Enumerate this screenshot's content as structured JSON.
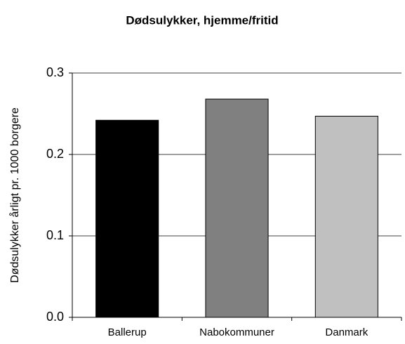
{
  "chart_data": {
    "type": "bar",
    "title": "Dødsulykker, hjemme/fritid",
    "y_label": "Dødsulykker årligt pr. 1000 borgere",
    "categories": [
      "Ballerup",
      "Nabokommuner",
      "Danmark"
    ],
    "values": [
      0.242,
      0.268,
      0.247
    ],
    "colors": [
      "#000000",
      "#808080",
      "#c0c0c0"
    ],
    "ylim": [
      0,
      0.3
    ],
    "yticks": [
      {
        "value": 0,
        "label": "0.0"
      },
      0.1,
      0.2,
      0.3
    ],
    "grid": true
  }
}
